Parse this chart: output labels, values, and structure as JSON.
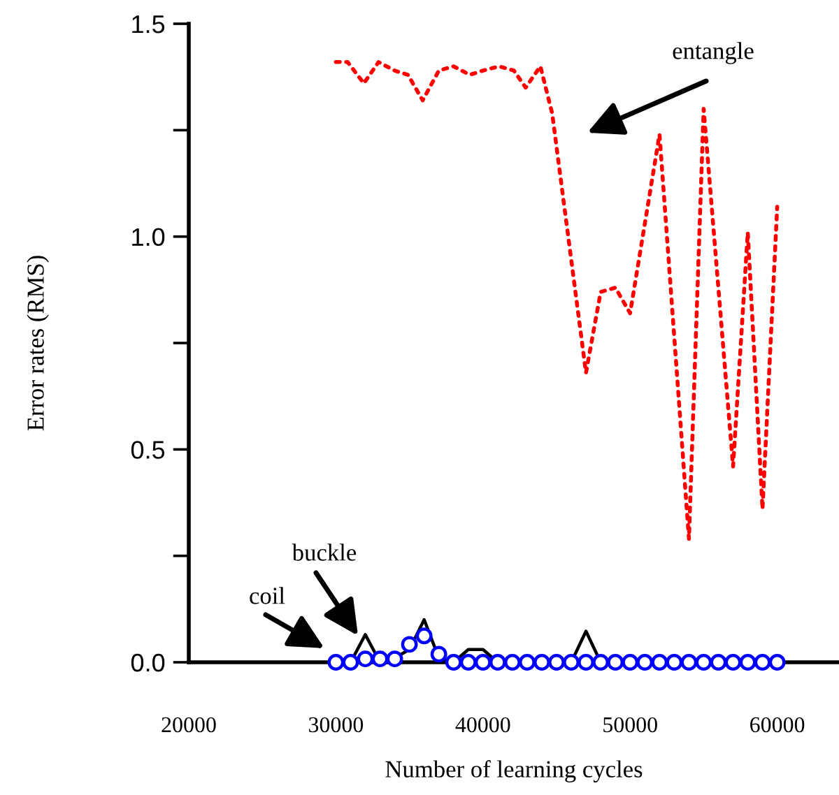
{
  "chart_data": {
    "type": "line",
    "xlabel": "Number of learning cycles",
    "ylabel": "Error rates (RMS)",
    "xlim": [
      20000,
      64200
    ],
    "xticks": [
      20000,
      30000,
      40000,
      50000,
      60000
    ],
    "ylim": [
      0,
      1.5
    ],
    "yticks": [
      {
        "value": 0,
        "label": "0.0"
      },
      {
        "value": 0.25,
        "label": null
      },
      {
        "value": 0.5,
        "label": "0.5"
      },
      {
        "value": 0.75,
        "label": null
      },
      {
        "value": 1,
        "label": "1.0"
      },
      {
        "value": 1.25,
        "label": null
      },
      {
        "value": 1.5,
        "label": "1.5"
      }
    ],
    "grid": false,
    "legend": false,
    "series": [
      {
        "color": "#ff0000",
        "line_style": "dotted",
        "x": [
          30000,
          30800,
          31900,
          32900,
          34000,
          34900,
          35900,
          37000,
          38000,
          39100,
          40000,
          41100,
          42100,
          42900,
          43900,
          44700,
          47000,
          48000,
          49000,
          50000,
          52000,
          54000,
          55000,
          57000,
          58000,
          59000,
          60000
        ],
        "values": [
          1.41,
          1.41,
          1.36,
          1.41,
          1.39,
          1.38,
          1.32,
          1.39,
          1.4,
          1.38,
          1.39,
          1.4,
          1.39,
          1.35,
          1.4,
          1.29,
          0.68,
          0.87,
          0.88,
          0.82,
          1.24,
          0.29,
          1.3,
          0.46,
          1.01,
          0.36,
          1.07
        ]
      },
      {
        "color": "#000000",
        "line_style": "solid",
        "x": [
          30000,
          31000,
          32000,
          33000,
          34000,
          35000,
          36000,
          37000,
          38000,
          39000,
          40000,
          41000,
          46000,
          47000,
          48000,
          60000
        ],
        "values": [
          0,
          0,
          0.065,
          0,
          0.01,
          0.03,
          0.1,
          0.01,
          0,
          0.03,
          0.03,
          0,
          0,
          0.073,
          0,
          0
        ]
      },
      {
        "type": "scatter",
        "color": "#0000ff",
        "marker": "circle",
        "x": [
          30000,
          31000,
          32000,
          33000,
          34000,
          35000,
          36000,
          37000,
          38000,
          39000,
          40000,
          41000,
          42000,
          43000,
          44000,
          45000,
          46000,
          47000,
          48000,
          49000,
          50000,
          51000,
          52000,
          53000,
          54000,
          55000,
          56000,
          57000,
          58000,
          59000,
          60000
        ],
        "values": [
          0,
          0,
          0.008,
          0.008,
          0.008,
          0.042,
          0.062,
          0.019,
          0,
          0,
          0,
          0,
          0,
          0,
          0,
          0,
          0,
          0,
          0,
          0,
          0,
          0,
          0,
          0,
          0,
          0,
          0,
          0,
          0,
          0,
          0
        ]
      }
    ],
    "annotations": [
      "entangle",
      "buckle",
      "coil"
    ]
  }
}
